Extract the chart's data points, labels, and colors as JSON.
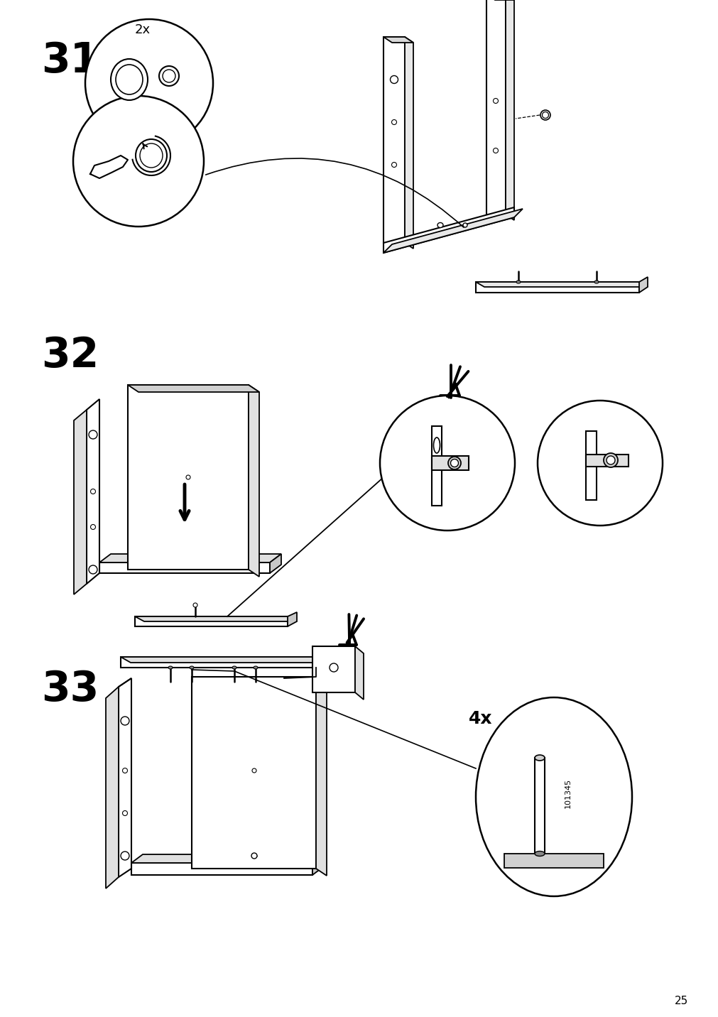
{
  "page_number": "25",
  "bg": "#ffffff",
  "lc": "#000000",
  "fig_w": 10.12,
  "fig_h": 14.32,
  "dpi": 100
}
